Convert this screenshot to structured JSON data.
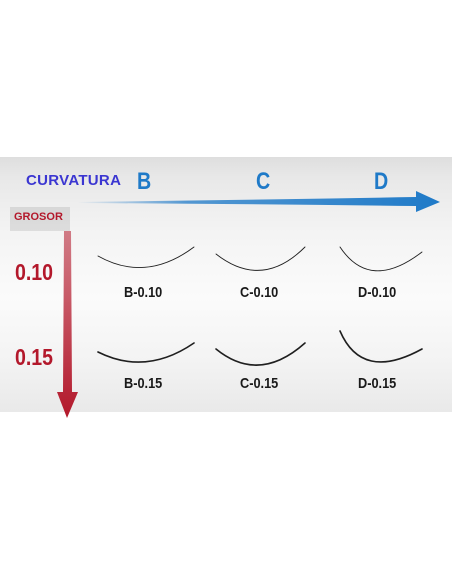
{
  "header": {
    "curvatura_label": "CURVATURA",
    "grosor_label": "GROSOR"
  },
  "columns": [
    "B",
    "C",
    "D"
  ],
  "rows": [
    "0.10",
    "0.15"
  ],
  "cells": [
    [
      "B-0.10",
      "C-0.10",
      "D-0.10"
    ],
    [
      "B-0.15",
      "C-0.15",
      "D-0.15"
    ]
  ],
  "colors": {
    "curvatura_text": "#3b36d1",
    "column_letters": "#1f7ac8",
    "blue_arrow": "#1f7ac8",
    "grosor_text": "#b3182b",
    "row_labels": "#b3182b",
    "red_arrow": "#b3182b",
    "lash_stroke": "#1f1f1f"
  }
}
